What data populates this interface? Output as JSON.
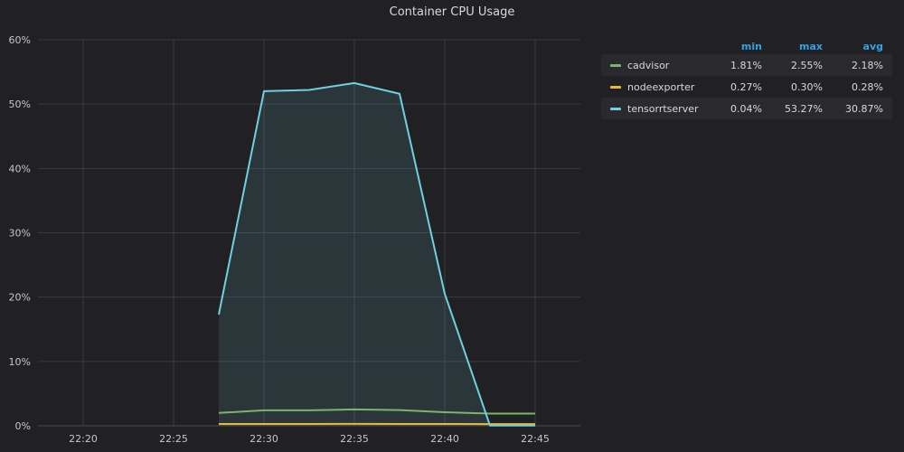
{
  "chart_data": {
    "type": "line",
    "title": "Container CPU Usage",
    "x_ticks": [
      "22:20",
      "22:25",
      "22:30",
      "22:35",
      "22:40",
      "22:45"
    ],
    "y_ticks": [
      "0%",
      "10%",
      "20%",
      "30%",
      "40%",
      "50%",
      "60%"
    ],
    "xlim": [
      "22:17:30",
      "22:47:30"
    ],
    "ylim": [
      0,
      60
    ],
    "x": [
      "22:27:30",
      "22:30:00",
      "22:32:30",
      "22:35:00",
      "22:37:30",
      "22:40:00",
      "22:42:30",
      "22:45:00"
    ],
    "grid": true,
    "legend_position": "right",
    "series": [
      {
        "name": "cadvisor",
        "color": "#7eb26d",
        "fill": false,
        "values": [
          2.0,
          2.4,
          2.4,
          2.55,
          2.45,
          2.1,
          1.9,
          1.9
        ]
      },
      {
        "name": "nodeexporter",
        "color": "#eab839",
        "fill": false,
        "values": [
          0.28,
          0.28,
          0.28,
          0.3,
          0.28,
          0.28,
          0.27,
          0.27
        ]
      },
      {
        "name": "tensorrtserver",
        "color": "#6ed0e0",
        "fill": true,
        "values": [
          17.3,
          52.0,
          52.2,
          53.27,
          51.6,
          20.5,
          0.04,
          0.04
        ]
      }
    ]
  },
  "legend": {
    "headers": {
      "min": "min",
      "max": "max",
      "avg": "avg"
    },
    "rows": [
      {
        "name": "cadvisor",
        "color": "#7eb26d",
        "min": "1.81%",
        "max": "2.55%",
        "avg": "2.18%"
      },
      {
        "name": "nodeexporter",
        "color": "#eab839",
        "min": "0.27%",
        "max": "0.30%",
        "avg": "0.28%"
      },
      {
        "name": "tensorrtserver",
        "color": "#6ed0e0",
        "min": "0.04%",
        "max": "53.27%",
        "avg": "30.87%"
      }
    ]
  }
}
